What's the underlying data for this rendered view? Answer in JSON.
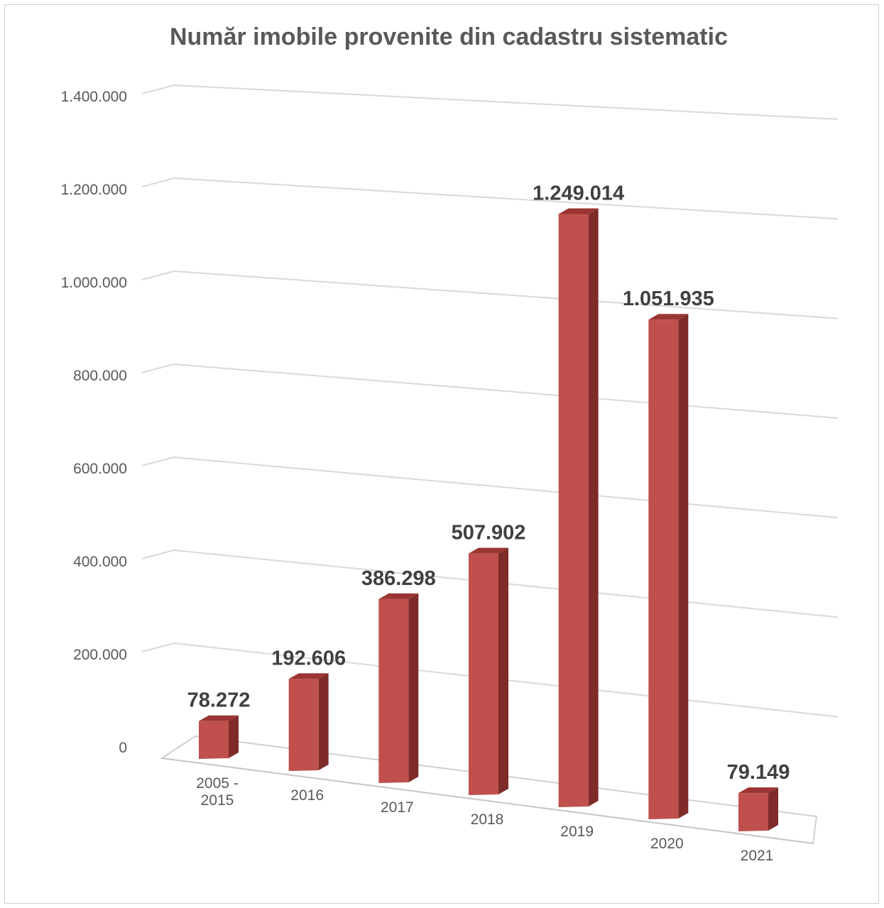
{
  "chart_data": {
    "type": "bar",
    "title": "Număr imobile provenite din cadastru sistematic",
    "categories": [
      [
        "2005 -",
        "2015"
      ],
      [
        "2016"
      ],
      [
        "2017"
      ],
      [
        "2018"
      ],
      [
        "2019"
      ],
      [
        "2020"
      ],
      [
        "2021"
      ]
    ],
    "values": [
      78272,
      192606,
      386298,
      507902,
      1249014,
      1051935,
      79149
    ],
    "data_labels": [
      "78.272",
      "192.606",
      "386.298",
      "507.902",
      "1.249.014",
      "1.051.935",
      "79.149"
    ],
    "y_ticks": [
      0,
      200000,
      400000,
      600000,
      800000,
      1000000,
      1200000,
      1400000
    ],
    "y_tick_labels": [
      "0",
      "200.000",
      "400.000",
      "600.000",
      "800.000",
      "1.000.000",
      "1.200.000",
      "1.400.000"
    ],
    "ylim": [
      0,
      1400000
    ],
    "grid": true,
    "legend": "none",
    "colors": {
      "bar_front": "#c0504d",
      "bar_side": "#7f2b2a",
      "bar_top": "#9b3533",
      "grid": "#d9d9d9"
    }
  }
}
